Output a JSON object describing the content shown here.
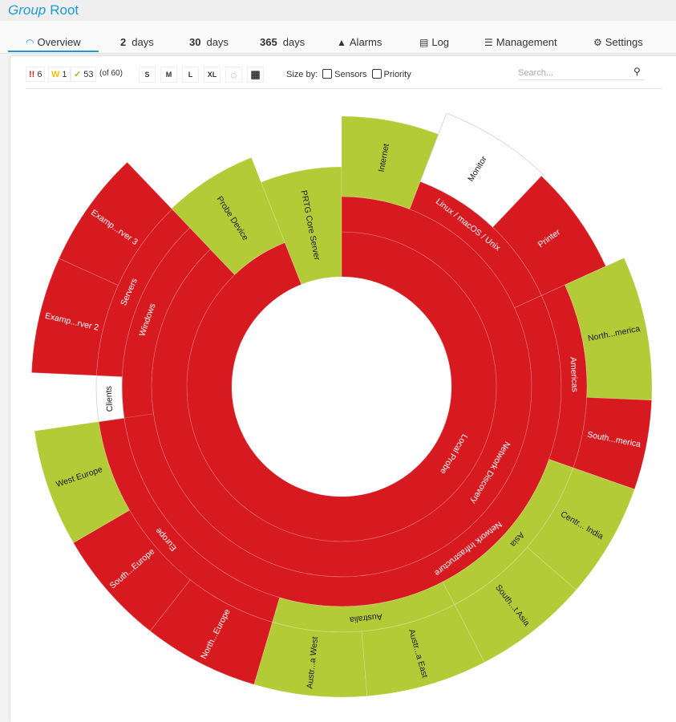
{
  "header": {
    "title_prefix": "Group",
    "title": "Root"
  },
  "tabs": [
    {
      "label": "Overview",
      "icon": "gauge-icon",
      "active": true
    },
    {
      "num": "2",
      "label": "days"
    },
    {
      "num": "30",
      "label": "days"
    },
    {
      "num": "365",
      "label": "days"
    },
    {
      "label": "Alarms",
      "icon": "warning-icon"
    },
    {
      "label": "Log",
      "icon": "log-icon"
    },
    {
      "label": "Management",
      "icon": "sliders-icon"
    },
    {
      "label": "Settings",
      "icon": "gear-icon"
    }
  ],
  "toolbar": {
    "counts": {
      "down": "6",
      "down_glyph": "!!",
      "warning": "1",
      "warning_glyph": "W",
      "up": "53",
      "up_glyph": "✓",
      "total": "(of 60)"
    },
    "sizes": [
      "S",
      "M",
      "L",
      "XL"
    ],
    "size_by_label": "Size by:",
    "size_by_options": [
      {
        "label": "Sensors",
        "checked": false
      },
      {
        "label": "Priority",
        "checked": false
      }
    ],
    "search_placeholder": "Search..."
  },
  "colors": {
    "down": "#d71920",
    "up": "#b4cb38",
    "unknown": "#ffffff",
    "accent": "#1e9bd7",
    "warning": "#f2c200"
  },
  "sunburst": {
    "segments": [
      {
        "label": "Local Probe",
        "status": "down"
      },
      {
        "label": "Network Discovery",
        "status": "down"
      },
      {
        "label": "PRTG Core Server",
        "status": "up"
      },
      {
        "label": "Probe Device",
        "status": "up"
      },
      {
        "label": "Internet",
        "status": "up"
      },
      {
        "label": "Linux / macOS / Unix",
        "status": "down"
      },
      {
        "label": "Monitor",
        "status": "unknown"
      },
      {
        "label": "Printer",
        "status": "down"
      },
      {
        "label": "Network Infrastructure",
        "status": "down"
      },
      {
        "label": "Americas",
        "status": "down"
      },
      {
        "label": "North...merica",
        "status": "up"
      },
      {
        "label": "South...merica",
        "status": "down"
      },
      {
        "label": "Asia",
        "status": "up"
      },
      {
        "label": "Centr... India",
        "status": "up"
      },
      {
        "label": "South...t Asia",
        "status": "up"
      },
      {
        "label": "Australia",
        "status": "up"
      },
      {
        "label": "Austr...a East",
        "status": "up"
      },
      {
        "label": "Austr...a West",
        "status": "up"
      },
      {
        "label": "Europe",
        "status": "down"
      },
      {
        "label": "North...Europe",
        "status": "down"
      },
      {
        "label": "South...Europe",
        "status": "down"
      },
      {
        "label": "West Europe",
        "status": "up"
      },
      {
        "label": "Windows",
        "status": "down"
      },
      {
        "label": "Clients",
        "status": "unknown"
      },
      {
        "label": "Servers",
        "status": "down"
      },
      {
        "label": "Examp...rver 2",
        "status": "down"
      },
      {
        "label": "Examp...rver 3",
        "status": "down"
      }
    ]
  }
}
